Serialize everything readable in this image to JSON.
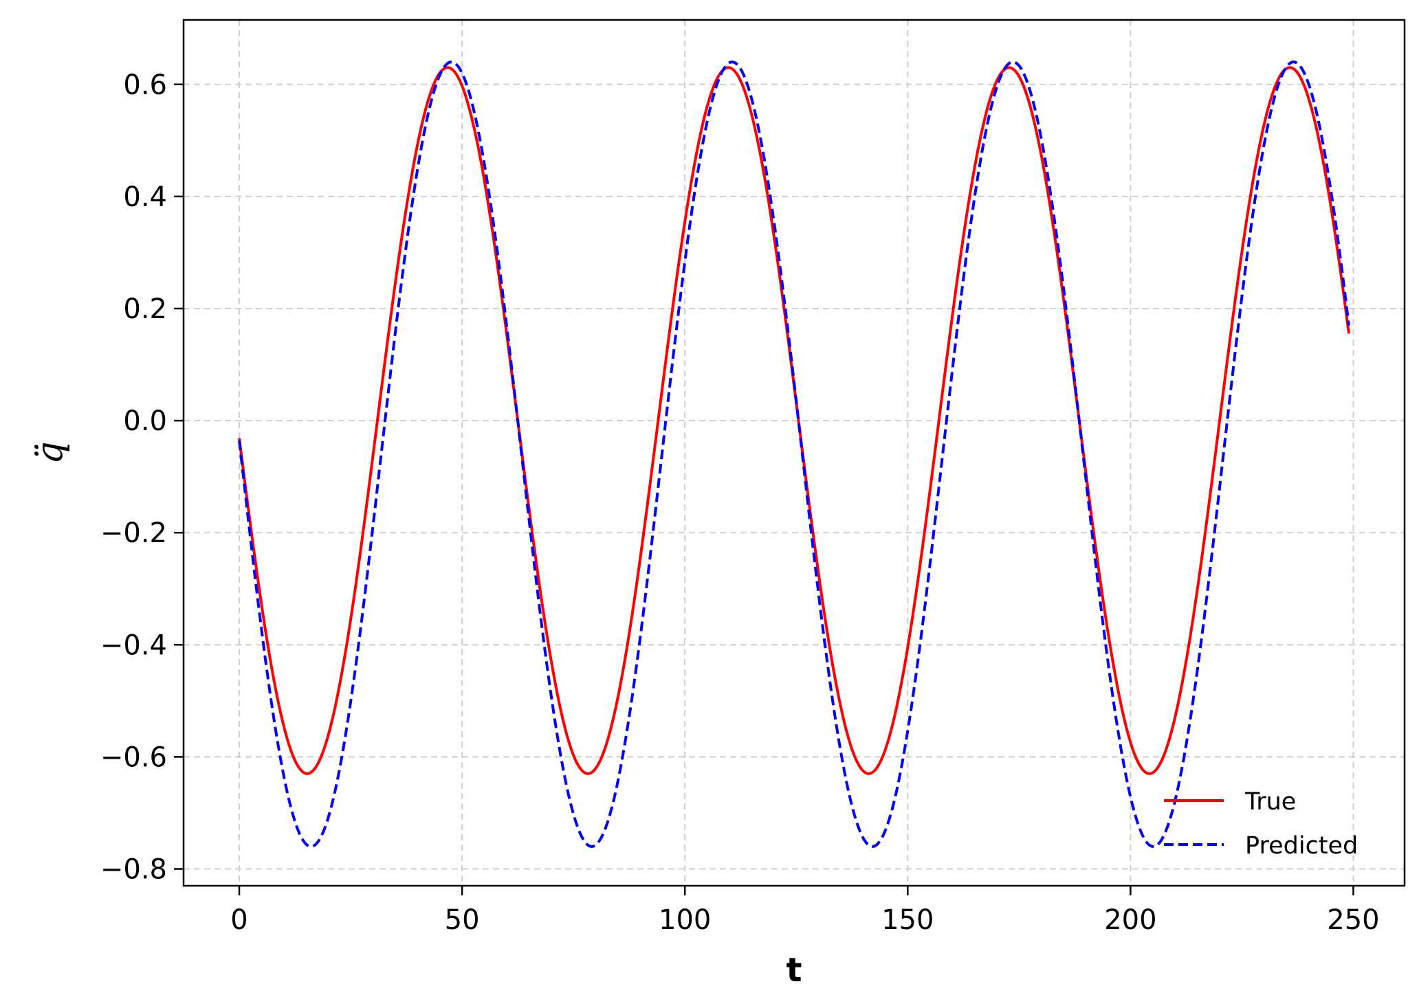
{
  "chart_data": {
    "type": "line",
    "title": "",
    "xlabel": "t",
    "ylabel": "q̈",
    "xlim": [
      -12.5,
      261.5
    ],
    "ylim": [
      -0.83,
      0.715
    ],
    "xticks": [
      0,
      50,
      100,
      150,
      200,
      250
    ],
    "xtick_labels": [
      "0",
      "50",
      "100",
      "150",
      "200",
      "250"
    ],
    "yticks": [
      0.6,
      0.4,
      0.2,
      0.0,
      -0.2,
      -0.4,
      -0.6,
      -0.8
    ],
    "ytick_labels": [
      "0.6",
      "0.4",
      "0.2",
      "0.0",
      "−0.2",
      "−0.4",
      "−0.6",
      "−0.8"
    ],
    "grid": true,
    "legend_position": "lower-right",
    "period": 63.0,
    "series": [
      {
        "name": "True",
        "color": "#ff0000",
        "style": "solid",
        "x_start": 0,
        "x_end": 249,
        "amplitude": 0.63,
        "offset": 0.0,
        "first_min_t": 15.25
      },
      {
        "name": "Predicted",
        "color": "#0000ff",
        "style": "dashed",
        "x_start": 0,
        "x_end": 249,
        "amplitude": 0.7,
        "offset": -0.06,
        "first_min_t": 16.1
      }
    ]
  }
}
